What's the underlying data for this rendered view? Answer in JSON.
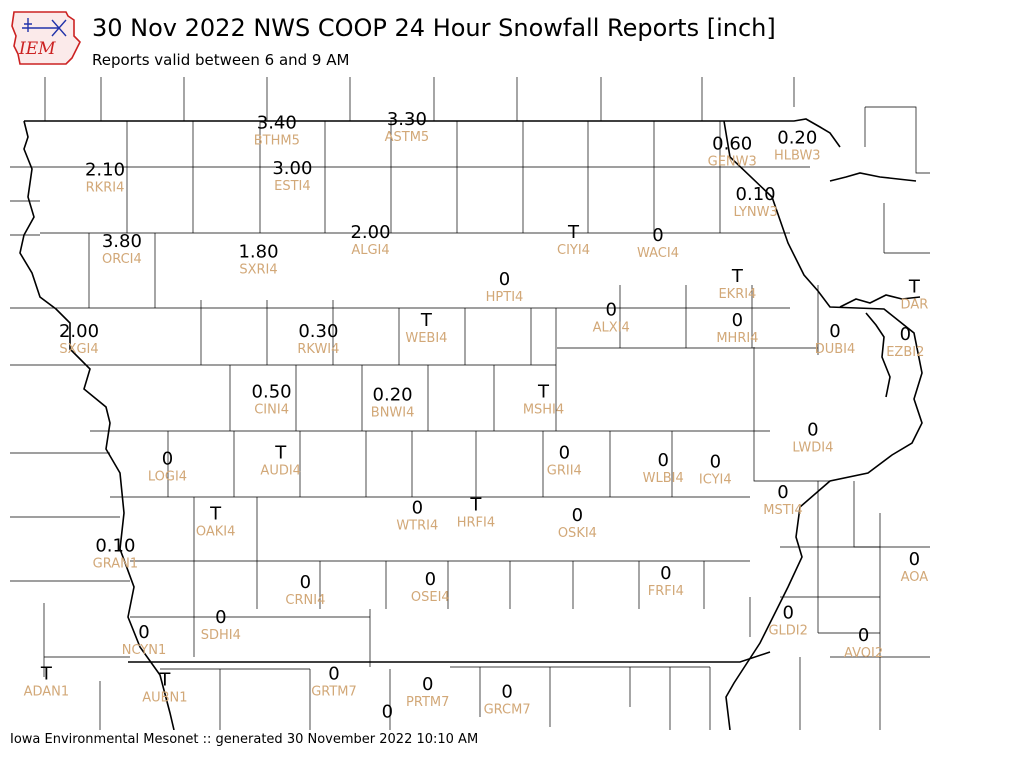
{
  "header": {
    "logo_text": "IEM",
    "title": "30 Nov 2022 NWS COOP 24 Hour Snowfall Reports [inch]",
    "subtitle": "Reports valid between 6 and 9 AM"
  },
  "footer": {
    "text": "Iowa Environmental Mesonet :: generated 30 November 2022 10:10 AM"
  },
  "colors": {
    "value_text": "#000000",
    "station_text": "#d2a878",
    "county_lines": "#000000",
    "logo_red": "#cc2222",
    "logo_blue": "#2233aa"
  },
  "stations": [
    {
      "id": "BTHM5",
      "value": "3.40",
      "x": -94.95,
      "y": 43.83
    },
    {
      "id": "ASTM5",
      "value": "3.30",
      "x": -93.95,
      "y": 43.85
    },
    {
      "id": "HLBW3",
      "value": "0.20",
      "x": -90.95,
      "y": 43.73
    },
    {
      "id": "GENW3",
      "value": "0.60",
      "x": -91.45,
      "y": 43.69
    },
    {
      "id": "RKRI4",
      "value": "2.10",
      "x": -96.27,
      "y": 43.52
    },
    {
      "id": "ESTI4",
      "value": "3.00",
      "x": -94.83,
      "y": 43.53
    },
    {
      "id": "LYNW3",
      "value": "0.10",
      "x": -91.27,
      "y": 43.36
    },
    {
      "id": "ALGI4",
      "value": "2.00",
      "x": -94.23,
      "y": 43.11
    },
    {
      "id": "CIYI4",
      "value": "T",
      "x": -92.67,
      "y": 43.11
    },
    {
      "id": "WACI4",
      "value": "0",
      "x": -92.02,
      "y": 43.09
    },
    {
      "id": "ORCI4",
      "value": "3.80",
      "x": -96.14,
      "y": 43.05
    },
    {
      "id": "SXRI4",
      "value": "1.80",
      "x": -95.09,
      "y": 42.98
    },
    {
      "id": "HPTI4",
      "value": "0",
      "x": -93.2,
      "y": 42.8
    },
    {
      "id": "EKRI4",
      "value": "T",
      "x": -91.41,
      "y": 42.82
    },
    {
      "id": "DAR",
      "value": "T",
      "x": -90.05,
      "y": 42.75
    },
    {
      "id": "ALXI4",
      "value": "0",
      "x": -92.38,
      "y": 42.6
    },
    {
      "id": "WEBI4",
      "value": "T",
      "x": -93.8,
      "y": 42.53
    },
    {
      "id": "MHRI4",
      "value": "0",
      "x": -91.41,
      "y": 42.53
    },
    {
      "id": "SXGI4",
      "value": "2.00",
      "x": -96.47,
      "y": 42.46
    },
    {
      "id": "RKWI4",
      "value": "0.30",
      "x": -94.63,
      "y": 42.46
    },
    {
      "id": "DUBI4",
      "value": "0",
      "x": -90.66,
      "y": 42.46
    },
    {
      "id": "EZBI2",
      "value": "0",
      "x": -90.12,
      "y": 42.44
    },
    {
      "id": "MSHI4",
      "value": "T",
      "x": -92.9,
      "y": 42.06
    },
    {
      "id": "CINI4",
      "value": "0.50",
      "x": -94.99,
      "y": 42.06
    },
    {
      "id": "BNWI4",
      "value": "0.20",
      "x": -94.06,
      "y": 42.04
    },
    {
      "id": "LWDI4",
      "value": "0",
      "x": -90.83,
      "y": 41.81
    },
    {
      "id": "AUDI4",
      "value": "T",
      "x": -94.92,
      "y": 41.66
    },
    {
      "id": "GRII4",
      "value": "0",
      "x": -92.74,
      "y": 41.66
    },
    {
      "id": "WLBI4",
      "value": "0",
      "x": -91.98,
      "y": 41.61
    },
    {
      "id": "ICYI4",
      "value": "0",
      "x": -91.58,
      "y": 41.6
    },
    {
      "id": "LOGI4",
      "value": "0",
      "x": -95.79,
      "y": 41.62
    },
    {
      "id": "HRFI4",
      "value": "T",
      "x": -93.42,
      "y": 41.32
    },
    {
      "id": "MSTI4",
      "value": "0",
      "x": -91.06,
      "y": 41.4
    },
    {
      "id": "WTRI4",
      "value": "0",
      "x": -93.87,
      "y": 41.3
    },
    {
      "id": "OAKI4",
      "value": "T",
      "x": -95.42,
      "y": 41.26
    },
    {
      "id": "OSKI4",
      "value": "0",
      "x": -92.64,
      "y": 41.25
    },
    {
      "id": "GRAN1",
      "value": "0.10",
      "x": -96.19,
      "y": 41.05
    },
    {
      "id": "AOA",
      "value": "0",
      "x": -90.05,
      "y": 40.96
    },
    {
      "id": "FRFI4",
      "value": "0",
      "x": -91.96,
      "y": 40.87
    },
    {
      "id": "OSEI4",
      "value": "0",
      "x": -93.77,
      "y": 40.83
    },
    {
      "id": "CRNI4",
      "value": "0",
      "x": -94.73,
      "y": 40.81
    },
    {
      "id": "GLDI2",
      "value": "0",
      "x": -91.02,
      "y": 40.61
    },
    {
      "id": "SDHI4",
      "value": "0",
      "x": -95.38,
      "y": 40.58
    },
    {
      "id": "NCYN1",
      "value": "0",
      "x": -95.97,
      "y": 40.48
    },
    {
      "id": "AVOI2",
      "value": "0",
      "x": -90.44,
      "y": 40.46
    },
    {
      "id": "ADAN1",
      "value": "T",
      "x": -96.72,
      "y": 40.21
    },
    {
      "id": "AUBN1",
      "value": "T",
      "x": -95.81,
      "y": 40.17
    },
    {
      "id": "GRTM7",
      "value": "0",
      "x": -94.51,
      "y": 40.21
    },
    {
      "id": "PRTM7",
      "value": "0",
      "x": -93.79,
      "y": 40.14
    },
    {
      "id": "GRCM7",
      "value": "0",
      "x": -93.18,
      "y": 40.09
    },
    {
      "id": "",
      "value": "0",
      "x": -94.1,
      "y": 39.96
    }
  ]
}
